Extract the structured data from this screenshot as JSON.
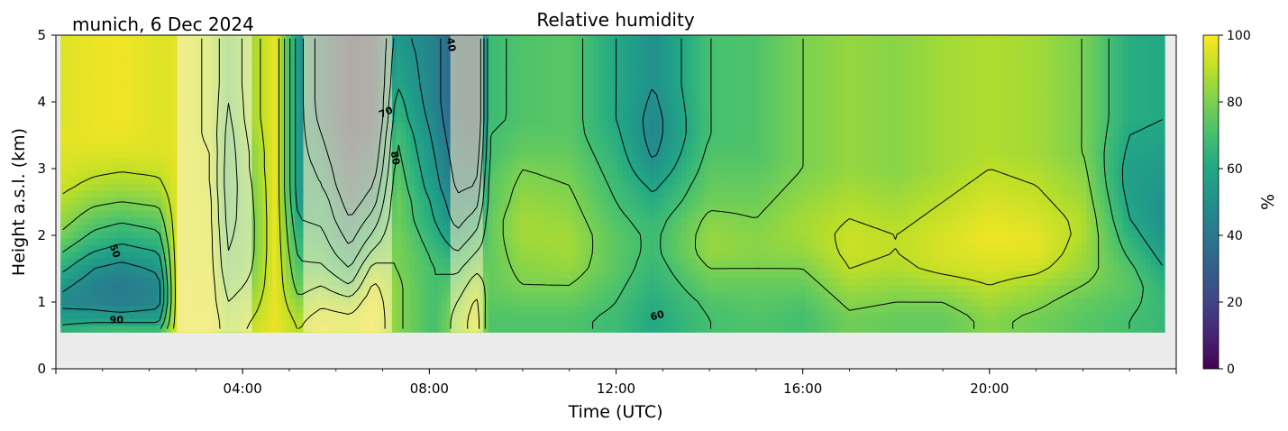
{
  "chart_data": {
    "type": "heatmap",
    "title": "Relative humidity",
    "subtitle": "munich, 6 Dec 2024",
    "xlabel": "Time (UTC)",
    "ylabel": "Height a.s.l. (km)",
    "xlim_hours": [
      0,
      24
    ],
    "ylim": [
      0,
      5
    ],
    "x_ticks": [
      "04:00",
      "08:00",
      "12:00",
      "16:00",
      "20:00"
    ],
    "x_tick_hours": [
      4,
      8,
      12,
      16,
      20
    ],
    "y_ticks": [
      "0",
      "1",
      "2",
      "3",
      "4",
      "5"
    ],
    "y_tick_values": [
      0,
      1,
      2,
      3,
      4,
      5
    ],
    "data_bottom_km": 0.55,
    "data_end_hours": 23.75,
    "colorbar": {
      "label": "%",
      "range": [
        0,
        100
      ],
      "ticks": [
        "0",
        "20",
        "40",
        "60",
        "80",
        "100"
      ],
      "tick_values": [
        0,
        20,
        40,
        60,
        80,
        100
      ],
      "colormap": "viridis"
    },
    "contour_levels": [
      40,
      50,
      60,
      70,
      80,
      90
    ],
    "contour_labels": [
      {
        "text": "50",
        "hour": 1.2,
        "km": 1.75,
        "rotate": 70
      },
      {
        "text": "90",
        "hour": 1.3,
        "km": 0.68,
        "rotate": 0
      },
      {
        "text": "70",
        "hour": 7.1,
        "km": 3.8,
        "rotate": -25
      },
      {
        "text": "80",
        "hour": 7.2,
        "km": 3.15,
        "rotate": 80
      },
      {
        "text": "40",
        "hour": 8.4,
        "km": 4.85,
        "rotate": 80
      },
      {
        "text": "60",
        "hour": 12.9,
        "km": 0.75,
        "rotate": -15
      }
    ],
    "rh_columns": [
      {
        "t": 0.15,
        "rh": [
          66,
          55,
          47,
          52,
          62,
          70,
          78,
          84,
          88,
          92,
          94,
          95,
          96,
          95,
          95,
          95,
          95,
          95,
          95,
          95
        ]
      },
      {
        "t": 0.8,
        "rh": [
          70,
          56,
          45,
          44,
          50,
          60,
          68,
          75,
          82,
          88,
          92,
          95,
          97,
          97,
          97,
          97,
          97,
          97,
          97,
          97
        ]
      },
      {
        "t": 1.4,
        "rh": [
          72,
          55,
          42,
          40,
          46,
          56,
          64,
          72,
          80,
          86,
          91,
          95,
          97,
          98,
          98,
          98,
          98,
          98,
          98,
          98
        ]
      },
      {
        "t": 2.2,
        "rh": [
          70,
          56,
          46,
          46,
          52,
          60,
          68,
          75,
          82,
          88,
          92,
          95,
          95,
          95,
          95,
          95,
          95,
          95,
          95,
          95
        ]
      },
      {
        "t": 2.6,
        "rh": [
          96,
          96,
          96,
          96,
          96,
          96,
          96,
          96,
          96,
          96,
          96,
          96,
          96,
          96,
          96,
          96,
          96,
          96,
          96,
          96
        ]
      },
      {
        "t": 3.3,
        "rh": [
          96,
          96,
          95,
          95,
          94,
          93,
          93,
          92,
          92,
          90,
          90,
          90,
          88,
          88,
          88,
          88,
          88,
          88,
          88,
          88
        ]
      },
      {
        "t": 3.7,
        "rh": [
          85,
          84,
          80,
          76,
          72,
          70,
          68,
          66,
          65,
          64,
          64,
          65,
          66,
          68,
          70,
          72,
          72,
          72,
          72,
          72
        ]
      },
      {
        "t": 4.2,
        "rh": [
          92,
          90,
          86,
          82,
          80,
          78,
          78,
          78,
          79,
          80,
          82,
          82,
          84,
          86,
          86,
          86,
          86,
          86,
          86,
          86
        ]
      },
      {
        "t": 4.7,
        "rh": [
          97,
          97,
          97,
          97,
          97,
          97,
          97,
          97,
          97,
          97,
          97,
          97,
          97,
          97,
          97,
          97,
          97,
          97,
          97,
          97
        ]
      },
      {
        "t": 5.2,
        "rh": [
          90,
          88,
          82,
          76,
          72,
          68,
          64,
          60,
          56,
          54,
          54,
          54,
          54,
          54,
          54,
          54,
          54,
          54,
          54,
          54
        ]
      },
      {
        "t": 5.7,
        "rh": [
          96,
          94,
          88,
          80,
          72,
          66,
          62,
          58,
          56,
          50,
          48,
          44,
          40,
          36,
          34,
          34,
          34,
          34,
          34,
          34
        ]
      },
      {
        "t": 6.3,
        "rh": [
          94,
          92,
          84,
          70,
          60,
          52,
          46,
          40,
          34,
          30,
          26,
          22,
          20,
          18,
          18,
          18,
          18,
          18,
          18,
          18
        ]
      },
      {
        "t": 6.8,
        "rh": [
          98,
          98,
          96,
          92,
          84,
          72,
          62,
          54,
          46,
          40,
          34,
          30,
          26,
          22,
          22,
          22,
          22,
          22,
          22,
          22
        ]
      },
      {
        "t": 7.3,
        "rh": [
          82,
          82,
          82,
          82,
          80,
          80,
          80,
          78,
          78,
          76,
          74,
          72,
          70,
          66,
          64,
          60,
          58,
          56,
          54,
          54
        ]
      },
      {
        "t": 8.1,
        "rh": [
          70,
          70,
          70,
          70,
          70,
          68,
          64,
          60,
          58,
          54,
          52,
          50,
          48,
          46,
          44,
          44,
          44,
          44,
          44,
          44
        ]
      },
      {
        "t": 8.6,
        "rh": [
          84,
          84,
          80,
          74,
          68,
          60,
          52,
          46,
          42,
          38,
          36,
          34,
          32,
          30,
          30,
          30,
          30,
          30,
          30,
          30
        ]
      },
      {
        "t": 9.0,
        "rh": [
          95,
          95,
          92,
          86,
          78,
          70,
          62,
          54,
          46,
          40,
          36,
          32,
          28,
          26,
          26,
          26,
          26,
          26,
          26,
          26
        ]
      },
      {
        "t": 9.3,
        "rh": [
          72,
          72,
          74,
          76,
          76,
          76,
          76,
          76,
          74,
          74,
          72,
          70,
          70,
          68,
          68,
          68,
          68,
          68,
          68,
          68
        ]
      },
      {
        "t": 10.0,
        "rh": [
          72,
          72,
          76,
          80,
          82,
          84,
          86,
          86,
          84,
          82,
          80,
          76,
          74,
          72,
          72,
          72,
          72,
          72,
          72,
          72
        ]
      },
      {
        "t": 11.0,
        "rh": [
          72,
          72,
          76,
          80,
          84,
          86,
          86,
          84,
          82,
          80,
          78,
          76,
          74,
          74,
          74,
          74,
          74,
          74,
          74,
          74
        ]
      },
      {
        "t": 12.0,
        "rh": [
          68,
          68,
          70,
          72,
          74,
          74,
          74,
          72,
          70,
          68,
          66,
          64,
          62,
          60,
          60,
          60,
          60,
          60,
          60,
          60
        ]
      },
      {
        "t": 12.8,
        "rh": [
          60,
          60,
          62,
          64,
          66,
          68,
          68,
          66,
          62,
          58,
          52,
          48,
          46,
          46,
          48,
          50,
          50,
          50,
          50,
          50
        ]
      },
      {
        "t": 14.0,
        "rh": [
          70,
          70,
          72,
          76,
          80,
          84,
          84,
          82,
          78,
          76,
          74,
          72,
          70,
          70,
          70,
          70,
          70,
          70,
          70,
          70
        ]
      },
      {
        "t": 15.0,
        "rh": [
          72,
          72,
          74,
          76,
          80,
          82,
          82,
          80,
          78,
          76,
          74,
          72,
          72,
          72,
          72,
          72,
          72,
          72,
          72,
          72
        ]
      },
      {
        "t": 16.0,
        "rh": [
          70,
          70,
          72,
          76,
          80,
          84,
          86,
          86,
          84,
          82,
          80,
          80,
          80,
          80,
          80,
          80,
          80,
          80,
          80,
          80
        ]
      },
      {
        "t": 17.0,
        "rh": [
          78,
          78,
          82,
          86,
          90,
          92,
          92,
          90,
          88,
          86,
          84,
          84,
          84,
          84,
          84,
          84,
          84,
          84,
          84,
          84
        ]
      },
      {
        "t": 18.0,
        "rh": [
          76,
          76,
          80,
          84,
          88,
          90,
          90,
          88,
          86,
          84,
          82,
          82,
          82,
          82,
          82,
          82,
          82,
          82,
          82,
          82
        ]
      },
      {
        "t": 19.0,
        "rh": [
          76,
          76,
          80,
          86,
          92,
          94,
          94,
          92,
          90,
          88,
          86,
          86,
          86,
          86,
          86,
          86,
          86,
          86,
          86,
          86
        ]
      },
      {
        "t": 20.0,
        "rh": [
          82,
          82,
          86,
          90,
          94,
          96,
          98,
          96,
          94,
          92,
          90,
          88,
          88,
          88,
          88,
          88,
          88,
          88,
          88,
          88
        ]
      },
      {
        "t": 21.0,
        "rh": [
          78,
          78,
          82,
          86,
          92,
          96,
          96,
          94,
          92,
          90,
          88,
          86,
          86,
          86,
          86,
          86,
          86,
          86,
          86,
          86
        ]
      },
      {
        "t": 22.0,
        "rh": [
          74,
          74,
          76,
          80,
          84,
          86,
          88,
          88,
          86,
          84,
          82,
          80,
          80,
          80,
          80,
          80,
          80,
          80,
          80,
          80
        ]
      },
      {
        "t": 23.0,
        "rh": [
          70,
          70,
          72,
          74,
          72,
          68,
          64,
          60,
          58,
          56,
          56,
          58,
          60,
          62,
          62,
          62,
          62,
          62,
          62,
          62
        ]
      },
      {
        "t": 23.75,
        "rh": [
          66,
          66,
          66,
          64,
          60,
          56,
          52,
          50,
          50,
          52,
          54,
          56,
          58,
          60,
          60,
          60,
          60,
          60,
          60,
          60
        ]
      }
    ],
    "rh_heights_km": [
      0.55,
      0.75,
      1.0,
      1.25,
      1.5,
      1.75,
      2.0,
      2.25,
      2.5,
      2.75,
      3.0,
      3.25,
      3.5,
      3.75,
      4.0,
      4.25,
      4.5,
      4.75,
      4.9,
      5.0
    ],
    "pale_bands": [
      {
        "start": 2.6,
        "end": 4.2,
        "alpha": 0.65
      },
      {
        "start": 5.3,
        "end": 7.2,
        "alpha": 0.6
      },
      {
        "start": 8.45,
        "end": 9.15,
        "alpha": 0.55
      }
    ]
  }
}
